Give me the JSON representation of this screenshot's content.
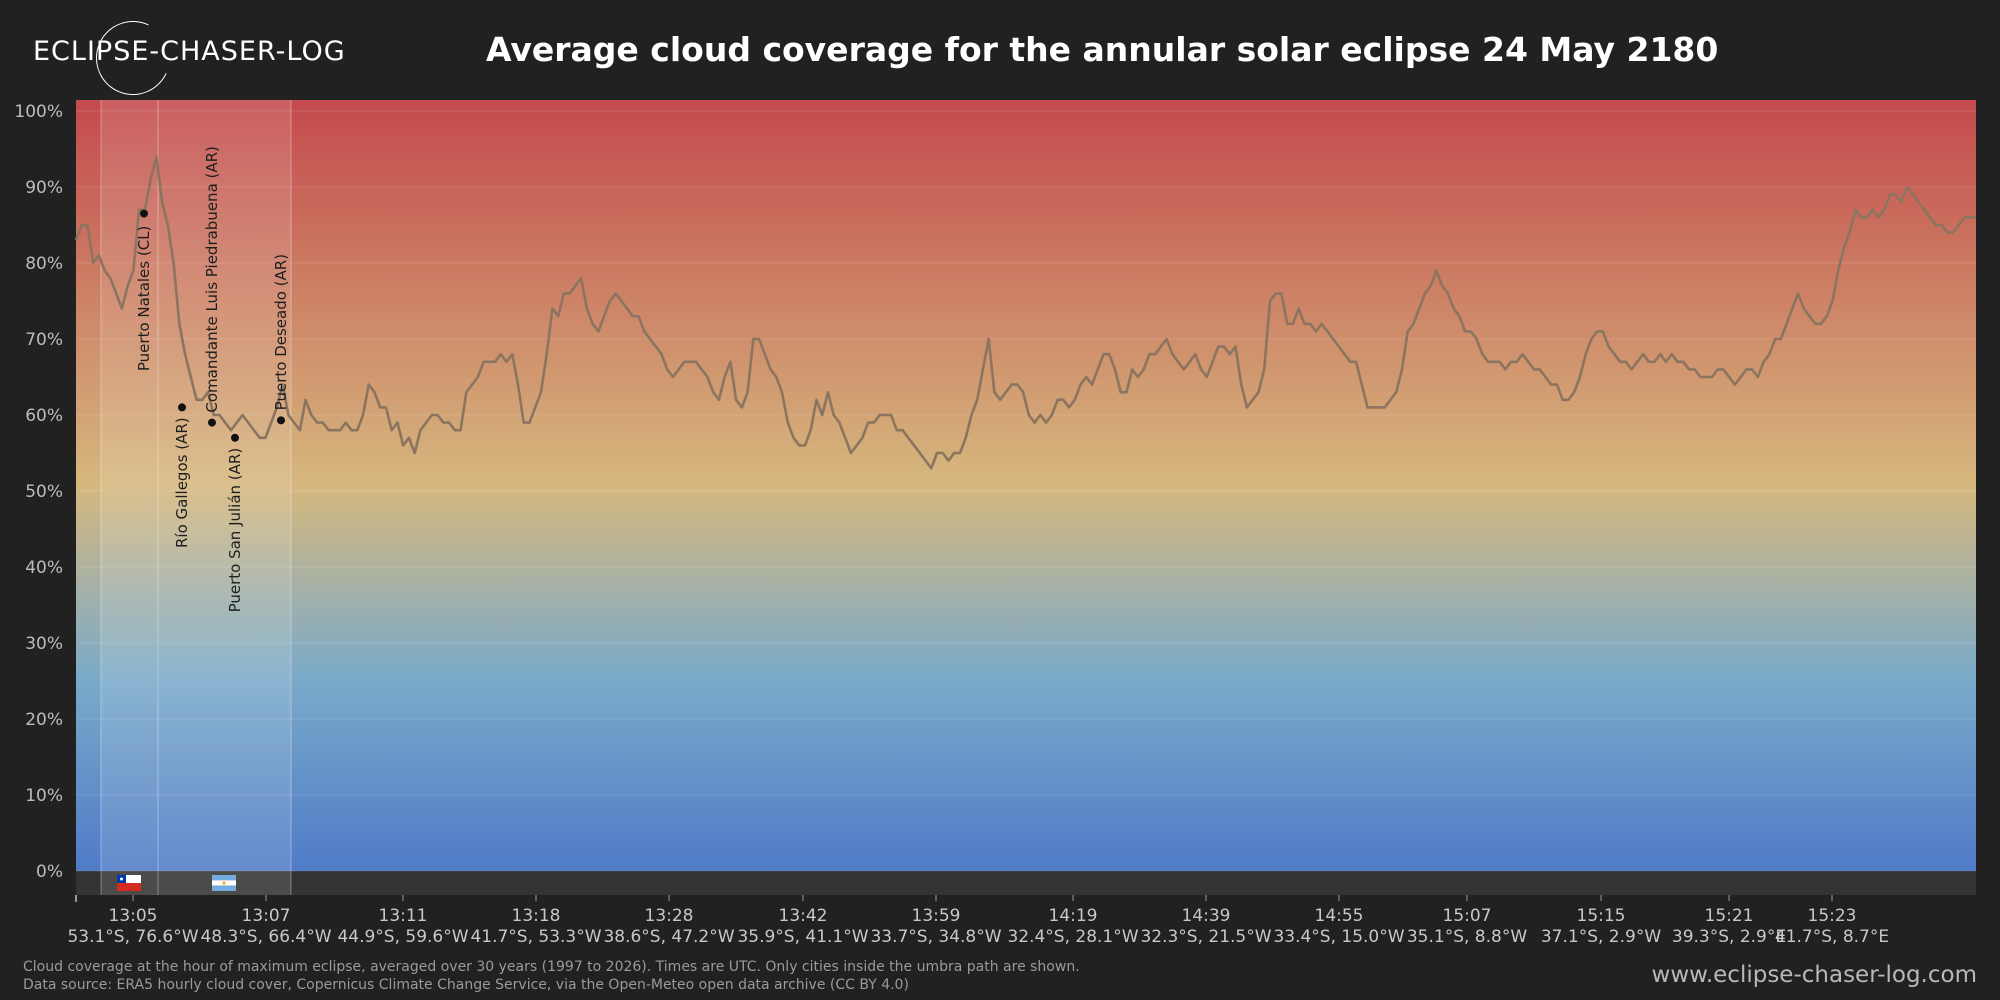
{
  "logo": {
    "text": "ECLIPSE-CHASER-LOG"
  },
  "header": {
    "title": "Average cloud coverage for the annular solar eclipse 24 May 2180"
  },
  "footer": {
    "note_line1": "Cloud coverage at the hour of maximum eclipse, averaged over 30 years (1997 to 2026). Times are UTC. Only cities inside the umbra path are shown.",
    "note_line2": "Data source: ERA5 hourly cloud cover, Copernicus Climate Change Service, via the Open-Meteo open data archive (CC BY 4.0)",
    "website": "www.eclipse-chaser-log.com"
  },
  "colors": {
    "background": "#212121",
    "gradient_top": "#c44a4d",
    "gradient_mid": "#d6b87e",
    "gradient_low": "#7aaac9",
    "gradient_bottom": "#4f7bc8",
    "line": "#8c7560",
    "flag_strip": "#333333"
  },
  "chart_data": {
    "type": "line",
    "title": "Average cloud coverage for the annular solar eclipse 24 May 2180",
    "ylabel": "",
    "ylim": [
      0,
      100
    ],
    "grid": true,
    "y_ticks": [
      "100%",
      "90%",
      "80%",
      "70%",
      "60%",
      "50%",
      "40%",
      "30%",
      "20%",
      "10%",
      "0%"
    ],
    "x_ticks": [
      {
        "time": "13:05",
        "coord": "53.1°S, 76.6°W"
      },
      {
        "time": "13:07",
        "coord": "48.3°S, 66.4°W"
      },
      {
        "time": "13:11",
        "coord": "44.9°S, 59.6°W"
      },
      {
        "time": "13:18",
        "coord": "41.7°S, 53.3°W"
      },
      {
        "time": "13:28",
        "coord": "38.6°S, 47.2°W"
      },
      {
        "time": "13:42",
        "coord": "35.9°S, 41.1°W"
      },
      {
        "time": "13:59",
        "coord": "33.7°S, 34.8°W"
      },
      {
        "time": "14:19",
        "coord": "32.4°S, 28.1°W"
      },
      {
        "time": "14:39",
        "coord": "32.3°S, 21.5°W"
      },
      {
        "time": "14:55",
        "coord": "33.4°S, 15.0°W"
      },
      {
        "time": "15:07",
        "coord": "35.1°S, 8.8°W"
      },
      {
        "time": "15:15",
        "coord": "37.1°S, 2.9°W"
      },
      {
        "time": "15:21",
        "coord": "39.3°S, 2.9°E"
      },
      {
        "time": "15:23",
        "coord": "41.7°S, 8.7°E"
      }
    ],
    "series": [
      {
        "values": [
          83,
          85,
          85,
          80,
          81,
          79,
          78,
          76,
          74,
          77,
          79,
          87,
          87,
          91,
          94,
          88,
          85,
          80,
          72,
          68,
          65,
          62,
          62,
          63,
          60,
          60,
          59,
          58,
          59,
          60,
          59,
          58,
          57,
          57,
          59,
          61,
          64,
          60,
          59,
          58,
          62,
          60,
          59,
          59,
          58,
          58,
          58,
          59,
          58,
          58,
          60,
          64,
          63,
          61,
          61,
          58,
          59,
          56,
          57,
          55,
          58,
          59,
          60,
          60,
          59,
          59,
          58,
          58,
          63,
          64,
          65,
          67,
          67,
          67,
          68,
          67,
          68,
          64,
          59,
          59,
          61,
          63,
          68,
          74,
          73,
          76,
          76,
          77,
          78,
          74,
          72,
          71,
          73,
          75,
          76,
          75,
          74,
          73,
          73,
          71,
          70,
          69,
          68,
          66,
          65,
          66,
          67,
          67,
          67,
          66,
          65,
          63,
          62,
          65,
          67,
          62,
          61,
          63,
          70,
          70,
          68,
          66,
          65,
          63,
          59,
          57,
          56,
          56,
          58,
          62,
          60,
          63,
          60,
          59,
          57,
          55,
          56,
          57,
          59,
          59,
          60,
          60,
          60,
          58,
          58,
          57,
          56,
          55,
          54,
          53,
          55,
          55,
          54,
          55,
          55,
          57,
          60,
          62,
          66,
          70,
          63,
          62,
          63,
          64,
          64,
          63,
          60,
          59,
          60,
          59,
          60,
          62,
          62,
          61,
          62,
          64,
          65,
          64,
          66,
          68,
          68,
          66,
          63,
          63,
          66,
          65,
          66,
          68,
          68,
          69,
          70,
          68,
          67,
          66,
          67,
          68,
          66,
          65,
          67,
          69,
          69,
          68,
          69,
          64,
          61,
          62,
          63,
          66,
          75,
          76,
          76,
          72,
          72,
          74,
          72,
          72,
          71,
          72,
          71,
          70,
          69,
          68,
          67,
          67,
          64,
          61,
          61,
          61,
          61,
          62,
          63,
          66,
          71,
          72,
          74,
          76,
          77,
          79,
          77,
          76,
          74,
          73,
          71,
          71,
          70,
          68,
          67,
          67,
          67,
          66,
          67,
          67,
          68,
          67,
          66,
          66,
          65,
          64,
          64,
          62,
          62,
          63,
          65,
          68,
          70,
          71,
          71,
          69,
          68,
          67,
          67,
          66,
          67,
          68,
          67,
          67,
          68,
          67,
          68,
          67,
          67,
          66,
          66,
          65,
          65,
          65,
          66,
          66,
          65,
          64,
          65,
          66,
          66,
          65,
          67,
          68,
          70,
          70,
          72,
          74,
          76,
          74,
          73,
          72,
          72,
          73,
          75,
          79,
          82,
          84,
          87,
          86,
          86,
          87,
          86,
          87,
          89,
          89,
          88,
          90,
          89,
          88,
          87,
          86,
          85,
          85,
          84,
          84,
          85,
          86,
          86,
          86
        ]
      }
    ],
    "umbra_markers": [
      {
        "label": "Puerto Natales (CL)",
        "value": 86.5
      },
      {
        "label": "Río Gallegos (AR)",
        "value": 61
      },
      {
        "label": "Comandante Luis Piedrabuena (AR)",
        "value": 59
      },
      {
        "label": "Puerto San Julián (AR)",
        "value": 57
      },
      {
        "label": "Puerto Deseado (AR)",
        "value": 59.3
      }
    ],
    "flags": [
      "chile-flag-icon",
      "argentina-flag-icon"
    ]
  }
}
